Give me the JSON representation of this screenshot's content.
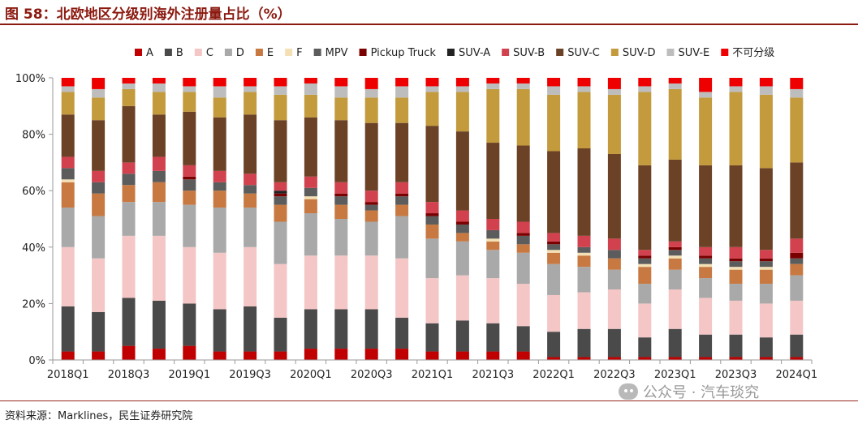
{
  "header": {
    "title": "图 58：北欧地区分级别海外注册量占比（%）"
  },
  "footer": {
    "source": "资料来源：Marklines，民生证券研究院",
    "watermark": "公众号 · 汽车琰究"
  },
  "chart_data": {
    "type": "bar",
    "stacked": true,
    "percent": true,
    "title": "",
    "xlabel": "",
    "ylabel": "",
    "ylim": [
      0,
      100
    ],
    "y_ticks": [
      0,
      20,
      40,
      60,
      80,
      100
    ],
    "y_tick_suffix": "%",
    "grid": false,
    "legend_position": "top",
    "categories": [
      "2018Q1",
      "2018Q2",
      "2018Q3",
      "2018Q4",
      "2019Q1",
      "2019Q2",
      "2019Q3",
      "2019Q4",
      "2020Q1",
      "2020Q2",
      "2020Q3",
      "2020Q4",
      "2021Q1",
      "2021Q2",
      "2021Q3",
      "2021Q4",
      "2022Q1",
      "2022Q2",
      "2022Q3",
      "2022Q4",
      "2023Q1",
      "2023Q2",
      "2023Q3",
      "2023Q4",
      "2024Q1"
    ],
    "x_tick_labels": [
      "2018Q1",
      "2018Q3",
      "2019Q1",
      "2019Q3",
      "2020Q1",
      "2020Q3",
      "2021Q1",
      "2021Q3",
      "2022Q1",
      "2022Q3",
      "2023Q1",
      "2023Q3",
      "2024Q1"
    ],
    "series": [
      {
        "name": "A",
        "color": "#c00000",
        "values": [
          3,
          3,
          5,
          4,
          5,
          3,
          3,
          3,
          4,
          4,
          4,
          4,
          3,
          3,
          3,
          3,
          1,
          1,
          1,
          1,
          1,
          1,
          1,
          1,
          1
        ]
      },
      {
        "name": "B",
        "color": "#4a4a4a",
        "values": [
          16,
          14,
          17,
          17,
          15,
          15,
          16,
          12,
          14,
          14,
          14,
          11,
          10,
          11,
          10,
          9,
          9,
          10,
          10,
          7,
          10,
          8,
          8,
          7,
          8
        ]
      },
      {
        "name": "C",
        "color": "#f4c6c6",
        "values": [
          21,
          19,
          22,
          23,
          20,
          20,
          21,
          19,
          19,
          19,
          19,
          21,
          16,
          16,
          16,
          15,
          13,
          13,
          14,
          12,
          14,
          13,
          12,
          12,
          12
        ]
      },
      {
        "name": "D",
        "color": "#a9a9a9",
        "values": [
          14,
          15,
          12,
          12,
          15,
          16,
          14,
          15,
          15,
          13,
          12,
          15,
          14,
          12,
          10,
          11,
          11,
          9,
          7,
          7,
          7,
          7,
          6,
          7,
          9
        ]
      },
      {
        "name": "E",
        "color": "#c87941",
        "values": [
          9,
          8,
          6,
          7,
          5,
          6,
          5,
          6,
          5,
          5,
          4,
          4,
          5,
          3,
          3,
          3,
          4,
          4,
          4,
          6,
          4,
          4,
          5,
          5,
          4
        ]
      },
      {
        "name": "F",
        "color": "#f3e0b5",
        "values": [
          1,
          0,
          0,
          0,
          0,
          0,
          0,
          0,
          1,
          0,
          0,
          0,
          0,
          0,
          1,
          0,
          1,
          1,
          0,
          1,
          1,
          1,
          1,
          1,
          0
        ]
      },
      {
        "name": "MPV",
        "color": "#5c5c5c",
        "values": [
          4,
          4,
          4,
          4,
          4,
          3,
          3,
          3,
          3,
          3,
          2,
          3,
          3,
          3,
          3,
          3,
          2,
          2,
          3,
          2,
          2,
          2,
          2,
          2,
          2
        ]
      },
      {
        "name": "Pickup Truck",
        "color": "#7a0000",
        "values": [
          0,
          0,
          0,
          0,
          1,
          0,
          0,
          1,
          0,
          1,
          1,
          1,
          1,
          1,
          0,
          1,
          1,
          0,
          0,
          1,
          1,
          1,
          1,
          1,
          2
        ]
      },
      {
        "name": "SUV-A",
        "color": "#222222",
        "values": [
          0,
          0,
          0,
          0,
          0,
          0,
          0,
          1,
          0,
          0,
          0,
          0,
          0,
          0,
          0,
          0,
          0,
          0,
          0,
          0,
          0,
          0,
          0,
          0,
          0
        ]
      },
      {
        "name": "SUV-B",
        "color": "#d1414e",
        "values": [
          4,
          4,
          4,
          5,
          4,
          4,
          4,
          3,
          4,
          4,
          4,
          4,
          4,
          4,
          4,
          4,
          3,
          4,
          4,
          2,
          2,
          3,
          4,
          3,
          5
        ]
      },
      {
        "name": "SUV-C",
        "color": "#6b4226",
        "values": [
          15,
          18,
          20,
          15,
          19,
          19,
          21,
          22,
          21,
          22,
          24,
          21,
          27,
          28,
          27,
          27,
          29,
          31,
          30,
          30,
          29,
          29,
          29,
          29,
          27
        ]
      },
      {
        "name": "SUV-D",
        "color": "#c39a3c",
        "values": [
          8,
          8,
          6,
          8,
          7,
          7,
          8,
          9,
          8,
          8,
          9,
          9,
          12,
          14,
          19,
          20,
          20,
          20,
          21,
          26,
          25,
          24,
          26,
          26,
          23
        ]
      },
      {
        "name": "SUV-E",
        "color": "#bdbdbd",
        "values": [
          2,
          3,
          2,
          3,
          2,
          4,
          2,
          3,
          4,
          4,
          3,
          4,
          2,
          2,
          2,
          2,
          3,
          2,
          2,
          2,
          2,
          2,
          2,
          3,
          3
        ]
      },
      {
        "name": "不可分级",
        "color": "#ee0000",
        "values": [
          3,
          4,
          2,
          2,
          3,
          3,
          3,
          3,
          2,
          3,
          4,
          3,
          3,
          3,
          2,
          2,
          3,
          3,
          4,
          3,
          2,
          5,
          3,
          3,
          4
        ]
      }
    ]
  }
}
